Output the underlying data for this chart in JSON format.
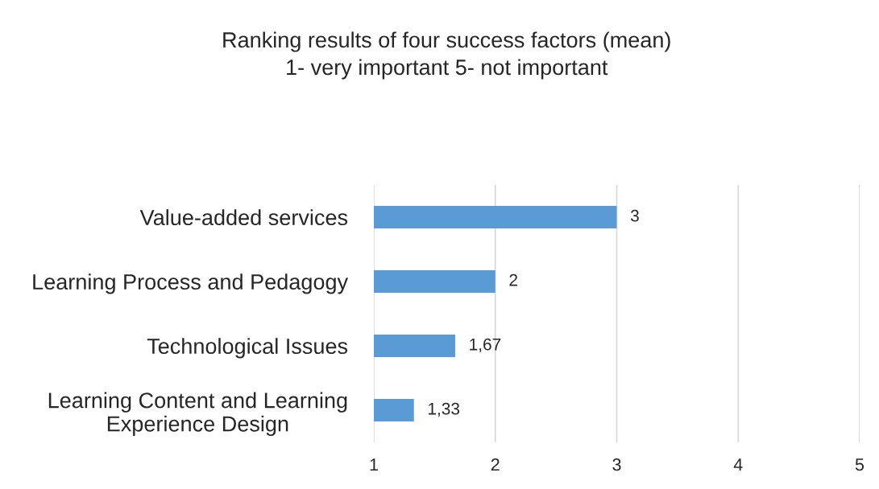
{
  "chart_data": {
    "type": "bar",
    "orientation": "horizontal",
    "title": "Ranking results of four success factors (mean)",
    "subtitle": "1- very important 5- not important",
    "categories": [
      "Value-added services",
      "Learning Process and Pedagogy",
      "Technological Issues",
      "Learning Content and Learning\nExperience Design"
    ],
    "values": [
      3,
      2,
      1.67,
      1.33
    ],
    "value_labels": [
      "3",
      "2",
      "1,67",
      "1,33"
    ],
    "color": "#5b9bd5",
    "xlim": [
      1,
      5
    ],
    "xticks": [
      1,
      2,
      3,
      4,
      5
    ],
    "grid": "x"
  }
}
